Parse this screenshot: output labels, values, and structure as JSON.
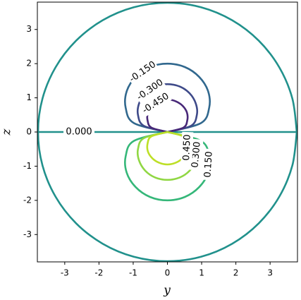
{
  "chart_data": {
    "type": "contour",
    "xlabel": "y",
    "ylabel": "z",
    "xlim": [
      -3.8,
      3.8
    ],
    "ylim": [
      -3.8,
      3.8
    ],
    "xticks": [
      -3,
      -2,
      -1,
      0,
      1,
      2,
      3
    ],
    "yticks": [
      -3,
      -2,
      -1,
      0,
      1,
      2,
      3
    ],
    "series": [
      {
        "label": "0.000",
        "color": "#21918c",
        "x": [
          -3.8,
          3.8
        ],
        "y": [
          0,
          0
        ]
      },
      {
        "color": "#21918c",
        "x": [
          3.78,
          3.65,
          3.27,
          2.67,
          1.89,
          0.98,
          0,
          -0.98,
          -1.89,
          -2.67,
          -3.27,
          -3.65,
          -3.78,
          -3.65,
          -3.27,
          -2.67,
          -1.89,
          -0.98,
          0,
          0.98,
          1.89,
          2.67,
          3.27,
          3.65,
          3.78
        ],
        "y": [
          0,
          0.98,
          1.89,
          2.67,
          3.27,
          3.65,
          3.78,
          3.65,
          3.27,
          2.67,
          1.89,
          0.98,
          0,
          -0.98,
          -1.89,
          -2.67,
          -3.27,
          -3.65,
          -3.78,
          -3.65,
          -3.27,
          -2.67,
          -1.89,
          -0.98,
          0
        ]
      },
      {
        "label": "-0.150",
        "color": "#31688e",
        "x": [
          0,
          -0.98,
          -1.22,
          -1.19,
          -0.93,
          -0.51,
          0,
          0.51,
          0.93,
          1.19,
          1.22,
          0.98,
          0
        ],
        "y": [
          0,
          0.26,
          0.71,
          1.19,
          1.61,
          1.9,
          2.0,
          1.9,
          1.61,
          1.19,
          0.71,
          0.26,
          0
        ]
      },
      {
        "label": "-0.300",
        "color": "#3e4a89",
        "x": [
          0,
          -0.69,
          -0.86,
          -0.83,
          -0.65,
          -0.36,
          0,
          0.36,
          0.65,
          0.83,
          0.86,
          0.69,
          0
        ],
        "y": [
          0,
          0.18,
          0.5,
          0.83,
          1.13,
          1.33,
          1.4,
          1.33,
          1.13,
          0.83,
          0.5,
          0.18,
          0
        ]
      },
      {
        "label": "-0.450",
        "color": "#482878",
        "x": [
          0,
          -0.47,
          -0.58,
          -0.57,
          -0.44,
          -0.24,
          0,
          0.24,
          0.44,
          0.57,
          0.58,
          0.47,
          0
        ],
        "y": [
          0,
          0.13,
          0.34,
          0.57,
          0.77,
          0.9,
          0.95,
          0.9,
          0.77,
          0.57,
          0.34,
          0.13,
          0
        ]
      },
      {
        "label": "0.150",
        "color": "#35b779",
        "x": [
          0,
          -0.98,
          -1.22,
          -1.19,
          -0.93,
          -0.51,
          0,
          0.51,
          0.93,
          1.19,
          1.22,
          0.98,
          0
        ],
        "y": [
          0,
          -0.26,
          -0.71,
          -1.19,
          -1.61,
          -1.9,
          -2.0,
          -1.9,
          -1.61,
          -1.19,
          -0.71,
          -0.26,
          0
        ]
      },
      {
        "label": "0.300",
        "color": "#90d743",
        "x": [
          0,
          -0.69,
          -0.86,
          -0.83,
          -0.65,
          -0.36,
          0,
          0.36,
          0.65,
          0.83,
          0.86,
          0.69,
          0
        ],
        "y": [
          0,
          -0.18,
          -0.5,
          -0.83,
          -1.13,
          -1.33,
          -1.4,
          -1.33,
          -1.13,
          -0.83,
          -0.5,
          -0.18,
          0
        ]
      },
      {
        "label": "0.450",
        "color": "#bddf26",
        "x": [
          0,
          -0.47,
          -0.58,
          -0.57,
          -0.44,
          -0.24,
          0,
          0.24,
          0.44,
          0.57,
          0.58,
          0.47,
          0
        ],
        "y": [
          0,
          -0.13,
          -0.34,
          -0.57,
          -0.77,
          -0.9,
          -0.95,
          -0.9,
          -0.77,
          -0.57,
          -0.34,
          -0.13,
          0
        ]
      }
    ]
  }
}
